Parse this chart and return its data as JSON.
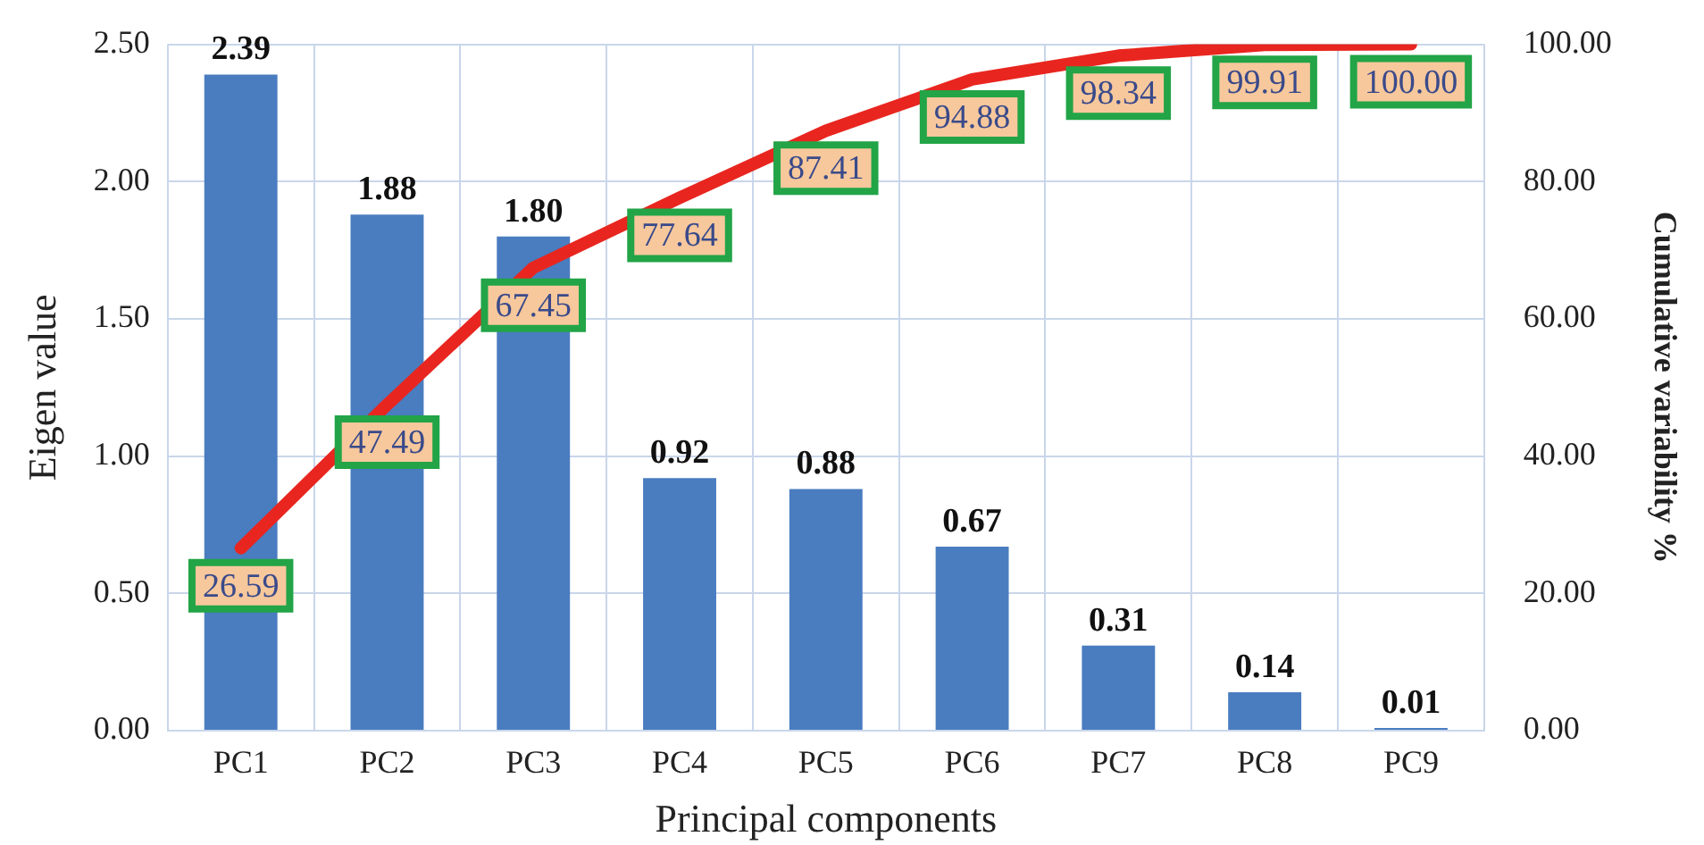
{
  "chart_data": {
    "type": "bar",
    "xlabel": "Principal components",
    "ylabel": "Eigen value",
    "y2label": "Cumulative variability %",
    "categories": [
      "PC1",
      "PC2",
      "PC3",
      "PC4",
      "PC5",
      "PC6",
      "PC7",
      "PC8",
      "PC9"
    ],
    "series": [
      {
        "color": "#4a7cc0",
        "values": [
          2.39,
          1.88,
          1.8,
          0.92,
          0.88,
          0.67,
          0.31,
          0.14,
          0.01
        ],
        "value_labels": [
          "2.39",
          "1.88",
          "1.80",
          "0.92",
          "0.88",
          "0.67",
          "0.31",
          "0.14",
          "0.01"
        ]
      },
      {
        "type": "line",
        "axis": "y2",
        "color": "#e8261f",
        "values": [
          26.59,
          47.49,
          67.45,
          77.64,
          87.41,
          94.88,
          98.34,
          99.91,
          100.0
        ],
        "value_labels": [
          "26.59",
          "47.49",
          "67.45",
          "77.64",
          "87.41",
          "94.88",
          "98.34",
          "99.91",
          "100.00"
        ]
      }
    ],
    "ylim": [
      0,
      2.5
    ],
    "yticks": [
      {
        "value": 0,
        "label": "0.00"
      },
      {
        "value": 0.5,
        "label": "0.50"
      },
      {
        "value": 1,
        "label": "1.00"
      },
      {
        "value": 1.5,
        "label": "1.50"
      },
      {
        "value": 2,
        "label": "2.00"
      },
      {
        "value": 2.5,
        "label": "2.50"
      }
    ],
    "y2lim": [
      0,
      100
    ],
    "y2ticks": [
      {
        "value": 0,
        "label": "0.00"
      },
      {
        "value": 20,
        "label": "20.00"
      },
      {
        "value": 40,
        "label": "40.00"
      },
      {
        "value": 60,
        "label": "60.00"
      },
      {
        "value": 80,
        "label": "80.00"
      },
      {
        "value": 100,
        "label": "100.00"
      }
    ],
    "grid": true,
    "legend": false,
    "line_style": "solid"
  }
}
